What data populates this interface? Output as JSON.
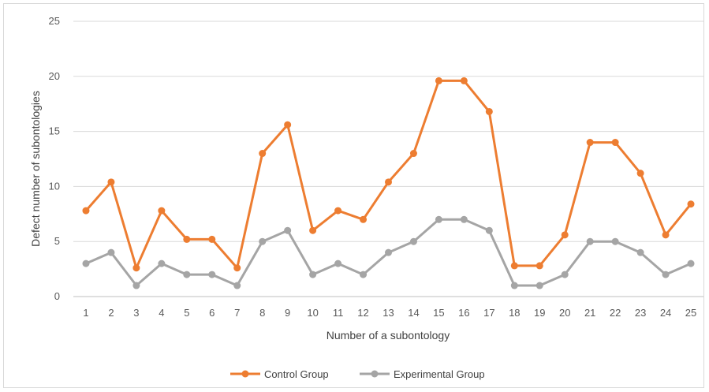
{
  "chart_data": {
    "type": "line",
    "title": "",
    "xlabel": "Number of a subontology",
    "ylabel": "Defect number of subontologies",
    "ylim": [
      0,
      25
    ],
    "yticks": [
      0,
      5,
      10,
      15,
      20,
      25
    ],
    "grid": true,
    "legend_position": "bottom",
    "categories": [
      "1",
      "2",
      "3",
      "4",
      "5",
      "6",
      "7",
      "8",
      "9",
      "10",
      "11",
      "12",
      "13",
      "14",
      "15",
      "16",
      "17",
      "18",
      "19",
      "20",
      "21",
      "22",
      "23",
      "24",
      "25"
    ],
    "series": [
      {
        "name": "Control Group",
        "color": "#ed7d31",
        "values": [
          7.8,
          10.4,
          2.6,
          7.8,
          5.2,
          5.2,
          2.6,
          13,
          15.6,
          6,
          7.8,
          7,
          10.4,
          13,
          19.6,
          19.6,
          16.8,
          2.8,
          2.8,
          5.6,
          14,
          14,
          11.2,
          5.6,
          8.4
        ]
      },
      {
        "name": "Experimental Group",
        "color": "#a5a5a5",
        "values": [
          3,
          4,
          1,
          3,
          2,
          2,
          1,
          5,
          6,
          2,
          3,
          2,
          4,
          5,
          7,
          7,
          6,
          1,
          1,
          2,
          5,
          5,
          4,
          2,
          3
        ]
      }
    ]
  }
}
